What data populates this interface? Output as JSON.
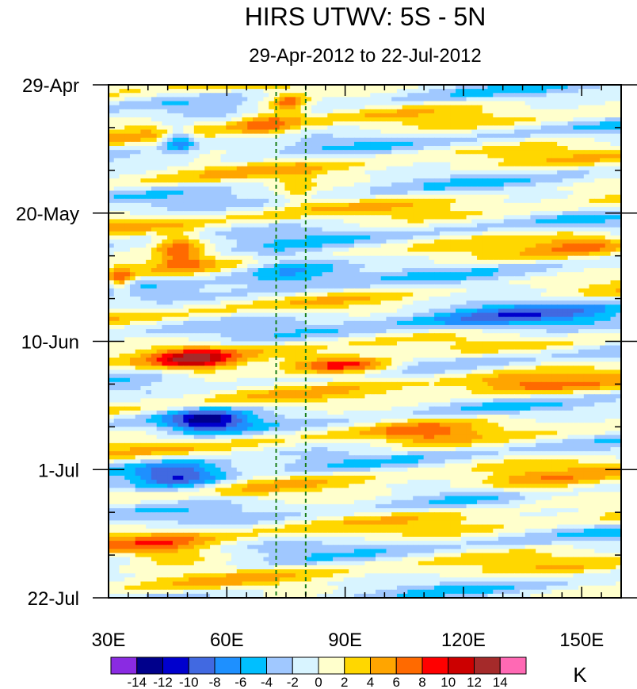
{
  "chart_data": {
    "type": "heatmap",
    "title": "HIRS UTWV: 5S - 5N",
    "subtitle": "29-Apr-2012 to 22-Jul-2012",
    "x_ticks": [
      {
        "value": 30,
        "label": "30E"
      },
      {
        "value": 60,
        "label": "60E"
      },
      {
        "value": 90,
        "label": "90E"
      },
      {
        "value": 120,
        "label": "120E"
      },
      {
        "value": 150,
        "label": "150E"
      }
    ],
    "x_range": [
      30,
      160
    ],
    "y_ticks": [
      {
        "day": 0,
        "label": "29-Apr"
      },
      {
        "day": 21,
        "label": "20-May"
      },
      {
        "day": 42,
        "label": "10-Jun"
      },
      {
        "day": 63,
        "label": "1-Jul"
      },
      {
        "day": 84,
        "label": "22-Jul"
      }
    ],
    "y_range_days": [
      0,
      84
    ],
    "reference_lines_lon": [
      72.5,
      80
    ],
    "colorbar": {
      "units": "K",
      "levels": [
        -14,
        -12,
        -10,
        -8,
        -6,
        -4,
        -2,
        0,
        2,
        4,
        6,
        8,
        10,
        12,
        14
      ],
      "labels": [
        "-14",
        "-12",
        "-10",
        "-8",
        "-6",
        "-4",
        "-2",
        "0",
        "2",
        "4",
        "6",
        "8",
        "10",
        "12",
        "14"
      ],
      "colors": [
        "#8a2be2",
        "#00008b",
        "#0000cd",
        "#4169e1",
        "#1e90ff",
        "#00bfff",
        "#a0c8ff",
        "#d8f4ff",
        "#ffffcc",
        "#ffd700",
        "#ffa500",
        "#ff6a00",
        "#ff0000",
        "#cc0000",
        "#a52a2a",
        "#ff69b4"
      ]
    },
    "features": [
      {
        "lon": 76,
        "day": 3,
        "value": 8,
        "spread_lon": 5,
        "spread_day": 1.5
      },
      {
        "lon": 70,
        "day": 6,
        "value": 6,
        "spread_lon": 8,
        "spread_day": 2.5
      },
      {
        "lon": 78,
        "day": 17,
        "value": 3,
        "spread_lon": 5,
        "spread_day": 3
      },
      {
        "lon": 48,
        "day": 9,
        "value": -8,
        "spread_lon": 4,
        "spread_day": 2
      },
      {
        "lon": 48,
        "day": 27,
        "value": 7,
        "spread_lon": 6,
        "spread_day": 3
      },
      {
        "lon": 33,
        "day": 32,
        "value": 7,
        "spread_lon": 3,
        "spread_day": 2
      },
      {
        "lon": 75,
        "day": 30,
        "value": -7,
        "spread_lon": 14,
        "spread_day": 3
      },
      {
        "lon": 130,
        "day": 38,
        "value": -6,
        "spread_lon": 28,
        "spread_day": 3
      },
      {
        "lon": 52,
        "day": 45,
        "value": 9,
        "spread_lon": 10,
        "spread_day": 2
      },
      {
        "lon": 90,
        "day": 46,
        "value": 11,
        "spread_lon": 14,
        "spread_day": 1.6
      },
      {
        "lon": 135,
        "day": 49,
        "value": 5,
        "spread_lon": 18,
        "spread_day": 2
      },
      {
        "lon": 55,
        "day": 55,
        "value": -10,
        "spread_lon": 10,
        "spread_day": 2
      },
      {
        "lon": 48,
        "day": 64,
        "value": -10,
        "spread_lon": 12,
        "spread_day": 2.5
      },
      {
        "lon": 45,
        "day": 76,
        "value": 5,
        "spread_lon": 14,
        "spread_day": 2.5
      },
      {
        "lon": 140,
        "day": 66,
        "value": 4,
        "spread_lon": 14,
        "spread_day": 2.5
      },
      {
        "lon": 110,
        "day": 57,
        "value": 4,
        "spread_lon": 12,
        "spread_day": 2
      },
      {
        "lon": 150,
        "day": 26,
        "value": 4,
        "spread_lon": 10,
        "spread_day": 2
      }
    ]
  }
}
